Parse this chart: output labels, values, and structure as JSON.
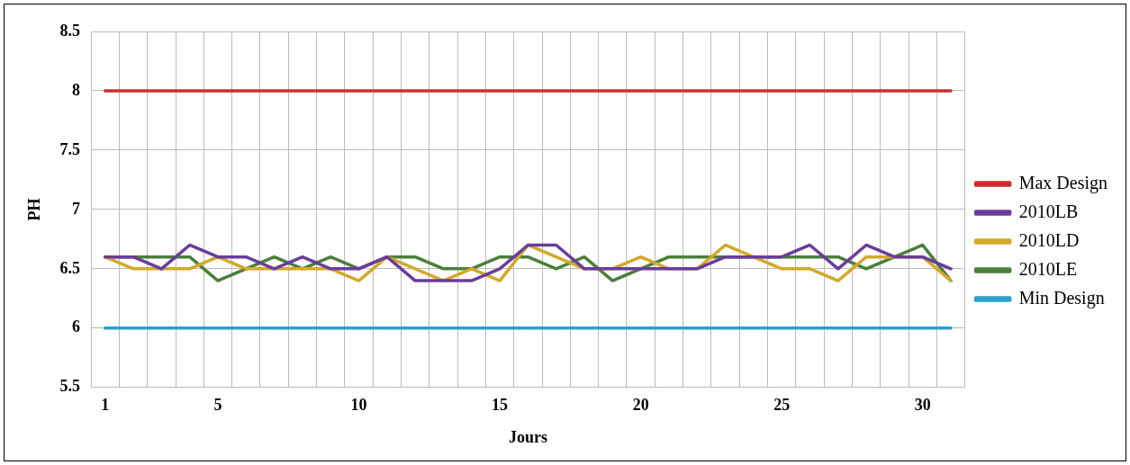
{
  "chart_data": {
    "type": "line",
    "xlabel": "Jours",
    "ylabel": "PH",
    "categories": [
      "1",
      null,
      null,
      null,
      "5",
      null,
      null,
      null,
      null,
      "10",
      null,
      null,
      null,
      null,
      "15",
      null,
      null,
      null,
      null,
      "20",
      null,
      null,
      null,
      null,
      "25",
      null,
      null,
      null,
      null,
      "30",
      null
    ],
    "ylim": [
      5.5,
      8.5
    ],
    "yticks": [
      5.5,
      6,
      6.5,
      7,
      7.5,
      8,
      8.5
    ],
    "grid": true,
    "legend": "right",
    "marker": "none",
    "line_style": "solid",
    "series": [
      {
        "name": "Max Design",
        "color": "#d22b2b",
        "values": [
          8,
          8,
          8,
          8,
          8,
          8,
          8,
          8,
          8,
          8,
          8,
          8,
          8,
          8,
          8,
          8,
          8,
          8,
          8,
          8,
          8,
          8,
          8,
          8,
          8,
          8,
          8,
          8,
          8,
          8,
          8
        ]
      },
      {
        "name": "2010LB",
        "color": "#6a3d9a",
        "values": [
          6.6,
          6.6,
          6.5,
          6.7,
          6.6,
          6.6,
          6.5,
          6.6,
          6.5,
          6.5,
          6.6,
          6.4,
          6.4,
          6.4,
          6.5,
          6.7,
          6.7,
          6.5,
          6.5,
          6.5,
          6.5,
          6.5,
          6.6,
          6.6,
          6.6,
          6.7,
          6.5,
          6.7,
          6.6,
          6.6,
          6.5
        ]
      },
      {
        "name": "2010LD",
        "color": "#d4a82a",
        "values": [
          6.6,
          6.5,
          6.5,
          6.5,
          6.6,
          6.5,
          6.5,
          6.5,
          6.5,
          6.4,
          6.6,
          6.5,
          6.4,
          6.5,
          6.4,
          6.7,
          6.6,
          6.5,
          6.5,
          6.6,
          6.5,
          6.5,
          6.7,
          6.6,
          6.5,
          6.5,
          6.4,
          6.6,
          6.6,
          6.6,
          6.4
        ]
      },
      {
        "name": "2010LE",
        "color": "#4a7f3a",
        "values": [
          6.6,
          6.6,
          6.6,
          6.6,
          6.4,
          6.5,
          6.6,
          6.5,
          6.6,
          6.5,
          6.6,
          6.6,
          6.5,
          6.5,
          6.6,
          6.6,
          6.5,
          6.6,
          6.4,
          6.5,
          6.6,
          6.6,
          6.6,
          6.6,
          6.6,
          6.6,
          6.6,
          6.5,
          6.6,
          6.7,
          6.4
        ]
      },
      {
        "name": "Min Design",
        "color": "#2e9fc9",
        "values": [
          6,
          6,
          6,
          6,
          6,
          6,
          6,
          6,
          6,
          6,
          6,
          6,
          6,
          6,
          6,
          6,
          6,
          6,
          6,
          6,
          6,
          6,
          6,
          6,
          6,
          6,
          6,
          6,
          6,
          6,
          6
        ]
      }
    ]
  }
}
